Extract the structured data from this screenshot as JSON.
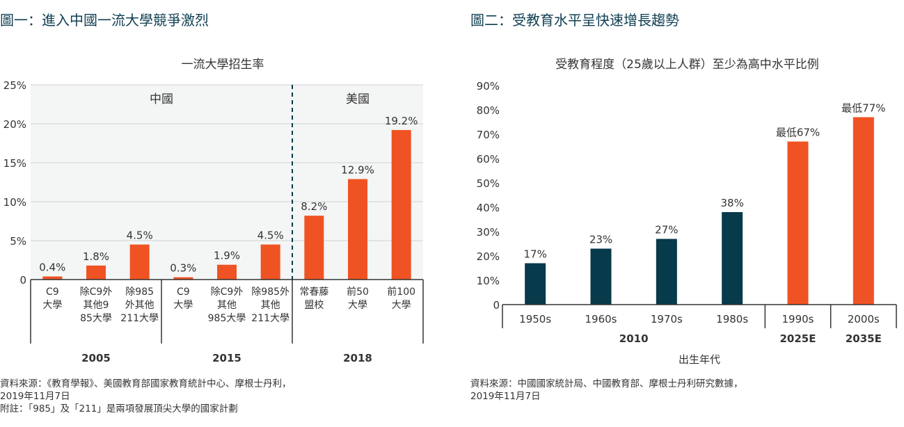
{
  "colors": {
    "orange": "#f05323",
    "navy": "#073a4a",
    "plot_bg": "#f4f5f5",
    "axis": "#333333",
    "title": "#0f3f52"
  },
  "left": {
    "figure_title": "圖一：進入中國一流大學競爭激烈",
    "source_lines": [
      "資料來源：《教育學報》、美國教育部國家教育統計中心、摩根士丹利，",
      "2019年11月7日",
      "附註：「985」及「211」是兩項發展頂尖大學的國家計劃"
    ]
  },
  "right": {
    "figure_title": "圖二：受教育水平呈快速增長趨勢",
    "source_lines": [
      "資料來源：中國國家統計局、中國教育部、摩根士丹利研究數據，",
      "2019年11月7日"
    ]
  },
  "chart_data": [
    {
      "type": "bar",
      "title": "一流大學招生率",
      "ylim": [
        0,
        25
      ],
      "yticks": [
        0,
        5,
        10,
        15,
        20,
        25
      ],
      "ytick_labels": [
        "0",
        "5%",
        "10%",
        "15%",
        "20%",
        "25%"
      ],
      "grid": true,
      "region_labels": [
        "中國",
        "美國"
      ],
      "groups": [
        {
          "label": "2005",
          "region": "中國",
          "bars": [
            {
              "category": [
                "C9",
                "大學"
              ],
              "value": 0.4,
              "label": "0.4%"
            },
            {
              "category": [
                "除C9外",
                "其他9",
                "85大學"
              ],
              "value": 1.8,
              "label": "1.8%"
            },
            {
              "category": [
                "除985",
                "外其他",
                "211大學"
              ],
              "value": 4.5,
              "label": "4.5%"
            }
          ]
        },
        {
          "label": "2015",
          "region": "中國",
          "bars": [
            {
              "category": [
                "C9",
                "大學"
              ],
              "value": 0.3,
              "label": "0.3%"
            },
            {
              "category": [
                "除C9外",
                "其他",
                "985大學"
              ],
              "value": 1.9,
              "label": "1.9%"
            },
            {
              "category": [
                "除985外",
                "其他",
                "211大學"
              ],
              "value": 4.5,
              "label": "4.5%"
            }
          ]
        },
        {
          "label": "2018",
          "region": "美國",
          "bars": [
            {
              "category": [
                "常春藤",
                "盟校"
              ],
              "value": 8.2,
              "label": "8.2%"
            },
            {
              "category": [
                "前50",
                "大學"
              ],
              "value": 12.9,
              "label": "12.9%"
            },
            {
              "category": [
                "前100",
                "大學"
              ],
              "value": 19.2,
              "label": "19.2%"
            }
          ]
        }
      ]
    },
    {
      "type": "bar",
      "title": "受教育程度（25歲以上人群）至少為高中水平比例",
      "xlabel": "出生年代",
      "ylim": [
        0,
        90
      ],
      "yticks": [
        0,
        10,
        20,
        30,
        40,
        50,
        60,
        70,
        80,
        90
      ],
      "ytick_labels": [
        "0",
        "10%",
        "20%",
        "30%",
        "40%",
        "50%",
        "60%",
        "70%",
        "80%",
        "90%"
      ],
      "grid": false,
      "groups": [
        {
          "label": "2010",
          "bars": [
            {
              "category": "1950s",
              "value": 17,
              "label": "17%",
              "color": "navy"
            },
            {
              "category": "1960s",
              "value": 23,
              "label": "23%",
              "color": "navy"
            },
            {
              "category": "1970s",
              "value": 27,
              "label": "27%",
              "color": "navy"
            },
            {
              "category": "1980s",
              "value": 38,
              "label": "38%",
              "color": "navy"
            }
          ]
        },
        {
          "label": "2025E",
          "bars": [
            {
              "category": "1990s",
              "value": 67,
              "label": "最低67%",
              "color": "orange"
            }
          ]
        },
        {
          "label": "2035E",
          "bars": [
            {
              "category": "2000s",
              "value": 77,
              "label": "最低77%",
              "color": "orange"
            }
          ]
        }
      ]
    }
  ]
}
